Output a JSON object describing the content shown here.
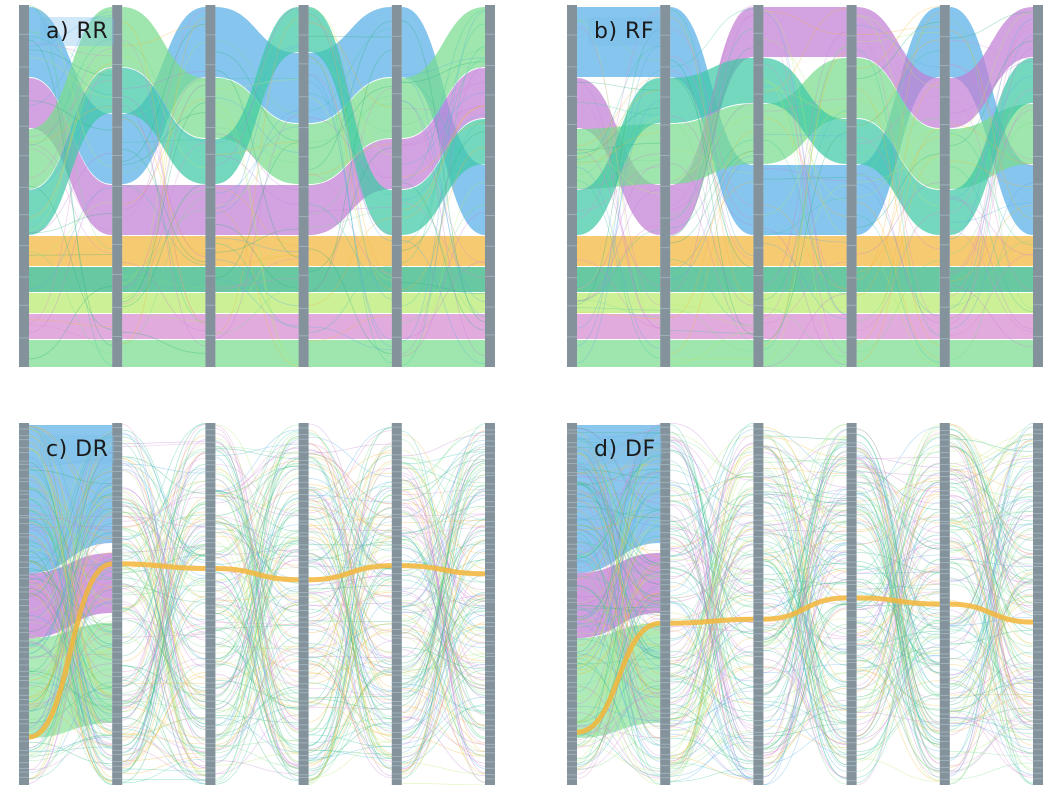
{
  "panels": [
    {
      "id": "a",
      "label": "a) RR",
      "mode": "R"
    },
    {
      "id": "b",
      "label": "b) RF",
      "mode": "R"
    },
    {
      "id": "c",
      "label": "c) DR",
      "mode": "D"
    },
    {
      "id": "d",
      "label": "d) DF",
      "mode": "D"
    }
  ],
  "colors": {
    "blue": "#58aee6",
    "purple": "#c27fd6",
    "green": "#79dc8e",
    "teal": "#3ec9a6",
    "orange": "#f3b63a",
    "darkgreen": "#2cb37d",
    "lime": "#b9ea6d",
    "pink": "#d78bd0",
    "axis": "#6d7f8a",
    "axis_light": "#9fb0ba"
  },
  "axis_count": 6
}
